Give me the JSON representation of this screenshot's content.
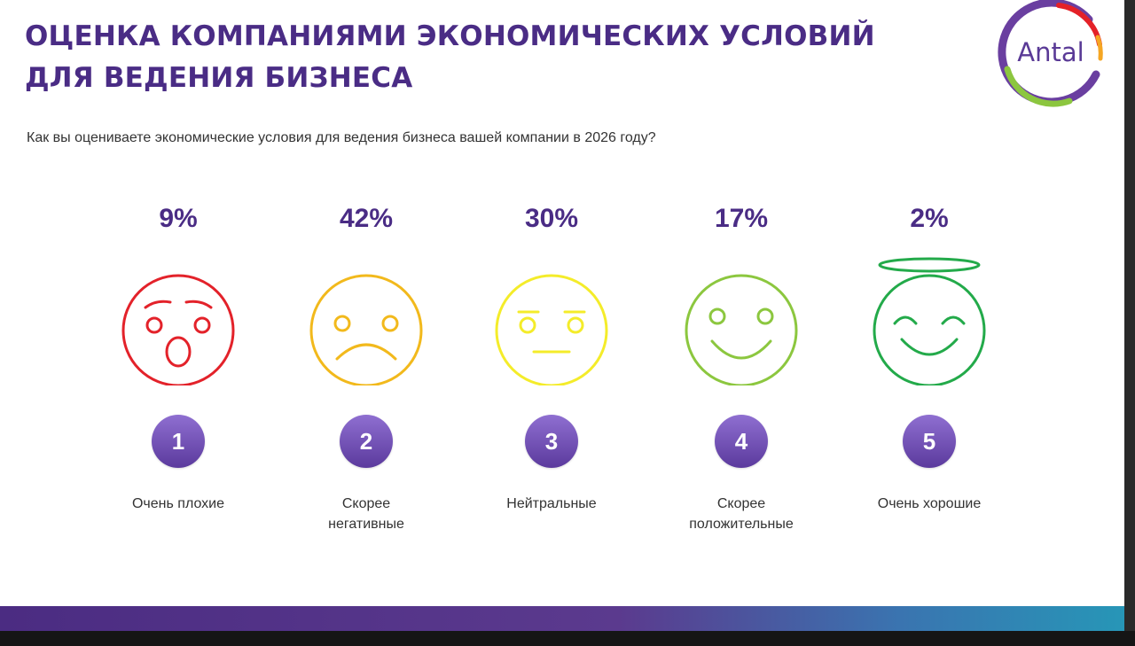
{
  "title_lines": [
    "ОЦЕНКА КОМПАНИЯМИ ЭКОНОМИЧЕСКИХ УСЛОВИЙ",
    "ДЛЯ ВЕДЕНИЯ БИЗНЕСА"
  ],
  "question": "Как вы оцениваете экономические условия для ведения бизнеса вашей компании в 2026 году?",
  "logo": {
    "text": "Antal",
    "colors": [
      "#6a3fa0",
      "#e42128",
      "#f5a623",
      "#8cc63f"
    ]
  },
  "colors": {
    "title": "#4a2c85",
    "badge": "#6a4bb5",
    "text": "#333333"
  },
  "chart_data": {
    "type": "bar",
    "categories": [
      "1",
      "2",
      "3",
      "4",
      "5"
    ],
    "values": [
      9,
      42,
      30,
      17,
      2
    ],
    "value_labels": [
      "9%",
      "42%",
      "30%",
      "17%",
      "2%"
    ],
    "items": [
      {
        "number": "1",
        "percent": "9%",
        "label": "Очень плохие",
        "icon": "shocked-face-icon",
        "color": "#e3222a"
      },
      {
        "number": "2",
        "percent": "42%",
        "label": "Скорее\nнегативные",
        "icon": "sad-face-icon",
        "color": "#f2b91c"
      },
      {
        "number": "3",
        "percent": "30%",
        "label": "Нейтральные",
        "icon": "neutral-face-icon",
        "color": "#f4ec2a"
      },
      {
        "number": "4",
        "percent": "17%",
        "label": "Скорее\nположительные",
        "icon": "smiling-face-icon",
        "color": "#8cc73f"
      },
      {
        "number": "5",
        "percent": "2%",
        "label": "Очень хорошие",
        "icon": "happy-angel-face-icon",
        "color": "#23aa4a"
      }
    ]
  }
}
